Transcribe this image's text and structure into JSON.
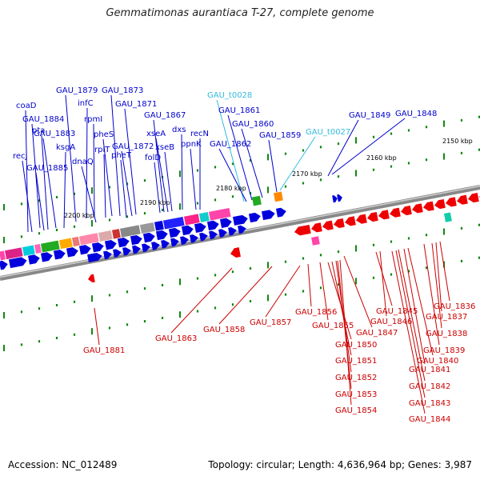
{
  "title": "Gemmatimonas aurantiaca T-27, complete genome",
  "footer": {
    "accession": "Accession: NC_012489",
    "topology": "Topology: circular; Length: 4,636,964 bp; Genes: 3,987"
  },
  "colors": {
    "forward": "#0000dd",
    "reverse": "#ee0000",
    "trna": "#33bbdd",
    "backbone": "#999999",
    "tick": "#118811"
  },
  "kbp_labels": [
    "2150 kbp",
    "2160 kbp",
    "2170 kbp",
    "2180 kbp",
    "2190 kbp",
    "2200 kbp"
  ],
  "top_labels": [
    {
      "text": "GAU_1879",
      "color": "#0000cc"
    },
    {
      "text": "GAU_1873",
      "color": "#0000cc"
    },
    {
      "text": "infC",
      "color": "#0000cc"
    },
    {
      "text": "GAU_1871",
      "color": "#0000cc"
    },
    {
      "text": "coaD",
      "color": "#0000cc"
    },
    {
      "text": "GAU_1884",
      "color": "#0000cc"
    },
    {
      "text": "rpmI",
      "color": "#0000cc"
    },
    {
      "text": "GAU_1867",
      "color": "#0000cc"
    },
    {
      "text": "dxs",
      "color": "#0000cc"
    },
    {
      "text": "pta",
      "color": "#0000cc"
    },
    {
      "text": "GAU_1883",
      "color": "#0000cc"
    },
    {
      "text": "pheS",
      "color": "#0000cc"
    },
    {
      "text": "xseA",
      "color": "#0000cc"
    },
    {
      "text": "recN",
      "color": "#0000cc"
    },
    {
      "text": "ksgA",
      "color": "#0000cc"
    },
    {
      "text": "GAU_1872",
      "color": "#0000cc"
    },
    {
      "text": "xseB",
      "color": "#0000cc"
    },
    {
      "text": "ppnK",
      "color": "#0000cc"
    },
    {
      "text": "recJ",
      "color": "#0000cc"
    },
    {
      "text": "rplT",
      "color": "#0000cc"
    },
    {
      "text": "dnaQ",
      "color": "#0000cc"
    },
    {
      "text": "pheT",
      "color": "#0000cc"
    },
    {
      "text": "folD",
      "color": "#0000cc"
    },
    {
      "text": "GAU_1885",
      "color": "#0000cc"
    },
    {
      "text": "GAU_t0028",
      "color": "#33bbdd"
    },
    {
      "text": "GAU_1861",
      "color": "#0000cc"
    },
    {
      "text": "GAU_1860",
      "color": "#0000cc"
    },
    {
      "text": "GAU_1862",
      "color": "#0000cc"
    },
    {
      "text": "GAU_1859",
      "color": "#0000cc"
    },
    {
      "text": "GAU_t0027",
      "color": "#33bbdd"
    },
    {
      "text": "GAU_1849",
      "color": "#0000cc"
    },
    {
      "text": "GAU_1848",
      "color": "#0000cc"
    }
  ],
  "bottom_labels": [
    {
      "text": "GAU_1881",
      "color": "#cc0000"
    },
    {
      "text": "GAU_1863",
      "color": "#cc0000"
    },
    {
      "text": "GAU_1858",
      "color": "#cc0000"
    },
    {
      "text": "GAU_1857",
      "color": "#cc0000"
    },
    {
      "text": "GAU_1856",
      "color": "#cc0000"
    },
    {
      "text": "GAU_1855",
      "color": "#cc0000"
    },
    {
      "text": "GAU_1847",
      "color": "#cc0000"
    },
    {
      "text": "GAU_1850",
      "color": "#cc0000"
    },
    {
      "text": "GAU_1851",
      "color": "#cc0000"
    },
    {
      "text": "GAU_1852",
      "color": "#cc0000"
    },
    {
      "text": "GAU_1853",
      "color": "#cc0000"
    },
    {
      "text": "GAU_1854",
      "color": "#cc0000"
    },
    {
      "text": "GAU_1845",
      "color": "#cc0000"
    },
    {
      "text": "GAU_1846",
      "color": "#cc0000"
    },
    {
      "text": "GAU_1840",
      "color": "#cc0000"
    },
    {
      "text": "GAU_1841",
      "color": "#cc0000"
    },
    {
      "text": "GAU_1842",
      "color": "#cc0000"
    },
    {
      "text": "GAU_1843",
      "color": "#cc0000"
    },
    {
      "text": "GAU_1844",
      "color": "#cc0000"
    },
    {
      "text": "GAU_1839",
      "color": "#cc0000"
    },
    {
      "text": "GAU_1836",
      "color": "#cc0000"
    },
    {
      "text": "GAU_1837",
      "color": "#cc0000"
    },
    {
      "text": "GAU_1838",
      "color": "#cc0000"
    }
  ]
}
